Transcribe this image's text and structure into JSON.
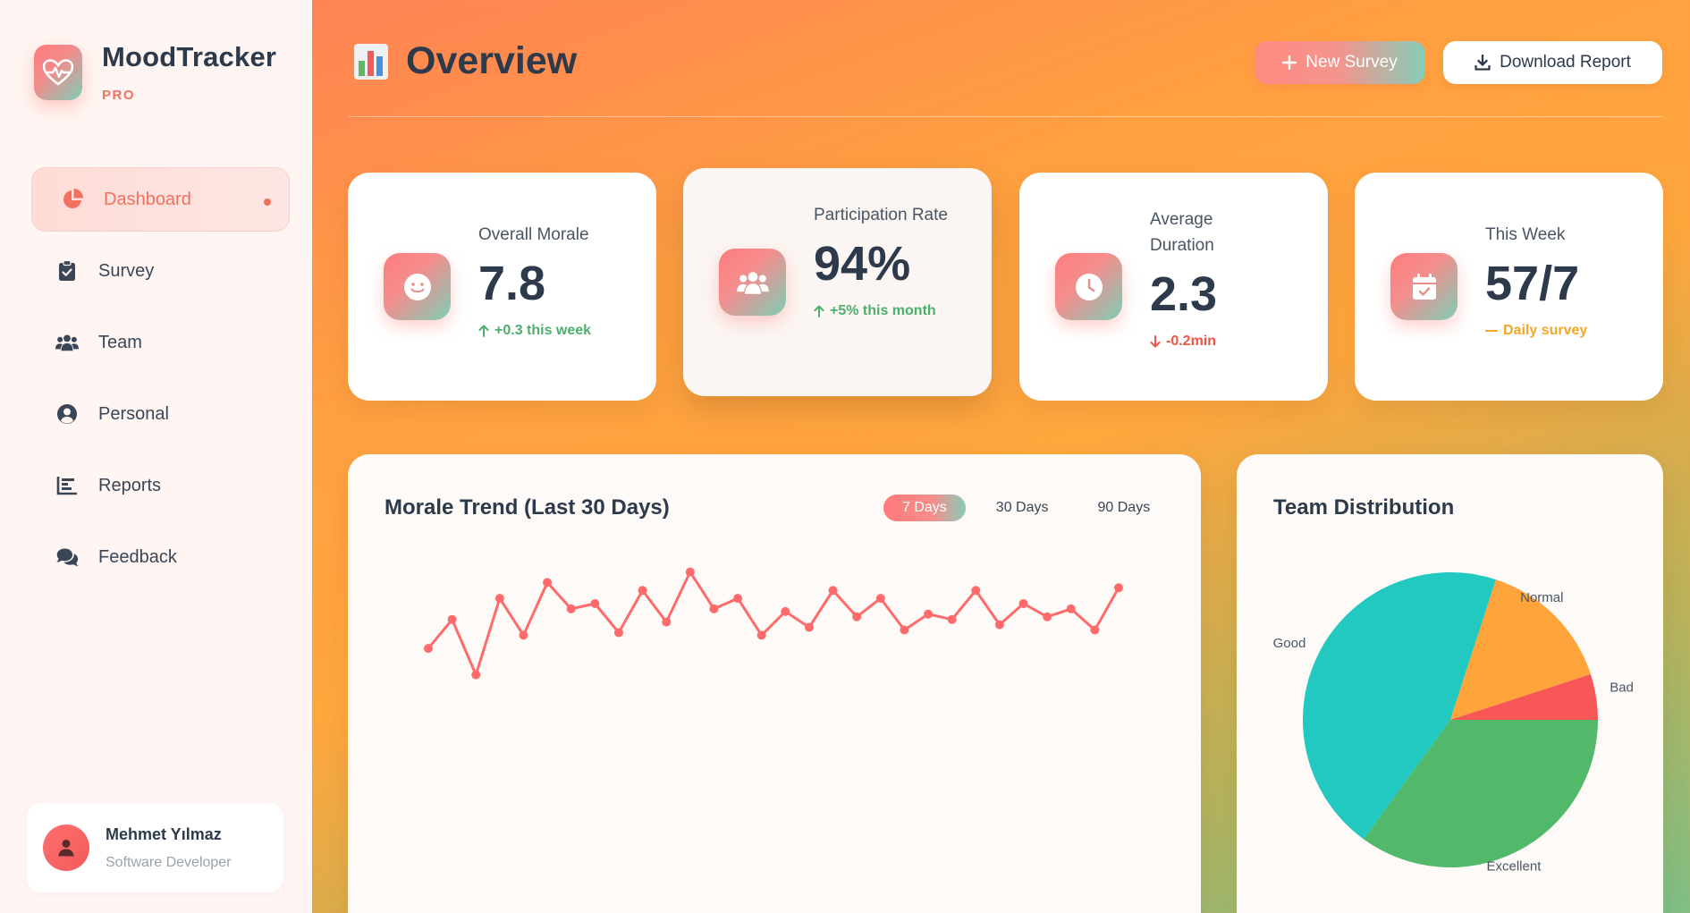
{
  "brand": {
    "name": "MoodTracker",
    "tag": "PRO"
  },
  "nav": {
    "items": [
      {
        "label": "Dashboard",
        "icon": "pie-chart-icon",
        "active": true
      },
      {
        "label": "Survey",
        "icon": "clipboard-check-icon",
        "active": false
      },
      {
        "label": "Team",
        "icon": "users-icon",
        "active": false
      },
      {
        "label": "Personal",
        "icon": "user-circle-icon",
        "active": false
      },
      {
        "label": "Reports",
        "icon": "bar-chart-icon",
        "active": false
      },
      {
        "label": "Feedback",
        "icon": "comments-icon",
        "active": false
      }
    ]
  },
  "user": {
    "name": "Mehmet Yılmaz",
    "role": "Software Developer"
  },
  "header": {
    "title": "Overview",
    "new_survey": "New Survey",
    "download_report": "Download Report"
  },
  "stats": [
    {
      "label": "Overall Morale",
      "value": "7.8",
      "change": "+0.3 this week",
      "trend": "up",
      "icon": "smile-icon"
    },
    {
      "label": "Participation Rate",
      "value": "94%",
      "change": "+5% this month",
      "trend": "up",
      "icon": "users-icon"
    },
    {
      "label": "Average Duration",
      "value": "2.3",
      "change": "-0.2min",
      "trend": "down",
      "icon": "clock-icon"
    },
    {
      "label": "This Week",
      "value": "57/7",
      "change": "Daily survey",
      "trend": "neutral",
      "icon": "calendar-check-icon"
    }
  ],
  "trend": {
    "title": "Morale Trend (Last 30 Days)",
    "ranges": [
      "7 Days",
      "30 Days",
      "90 Days"
    ],
    "active_range": "7 Days"
  },
  "distribution": {
    "title": "Team Distribution"
  },
  "colors": {
    "accent": "#f2705f",
    "line": "#ff6b6b",
    "good": "#22c9c1",
    "normal": "#ffa43a",
    "bad": "#f75757",
    "excellent": "#52b96a"
  },
  "chart_data": [
    {
      "type": "line",
      "title": "Morale Trend (Last 30 Days)",
      "x": [
        1,
        2,
        3,
        4,
        5,
        6,
        7,
        8,
        9,
        10,
        11,
        12,
        13,
        14,
        15,
        16,
        17,
        18,
        19,
        20,
        21,
        22,
        23,
        24,
        25,
        26,
        27,
        28,
        29,
        30
      ],
      "series": [
        {
          "values": [
            6.3,
            7.4,
            5.3,
            8.2,
            6.8,
            8.8,
            7.8,
            8.0,
            6.9,
            8.5,
            7.3,
            9.2,
            7.8,
            8.2,
            6.8,
            7.7,
            7.1,
            8.5,
            7.5,
            8.2,
            7.0,
            7.6,
            7.4,
            8.5,
            7.2,
            8.0,
            7.5,
            7.8,
            7.0,
            8.6
          ]
        }
      ],
      "ylim": [
        0,
        15
      ],
      "grid": false,
      "xlabel": "",
      "ylabel": ""
    },
    {
      "type": "pie",
      "title": "Team Distribution",
      "categories": [
        "Good",
        "Normal",
        "Bad",
        "Excellent"
      ],
      "values": [
        45,
        15,
        5,
        35
      ],
      "colors": [
        "#22c9c1",
        "#ffa43a",
        "#f75757",
        "#52b96a"
      ]
    }
  ]
}
